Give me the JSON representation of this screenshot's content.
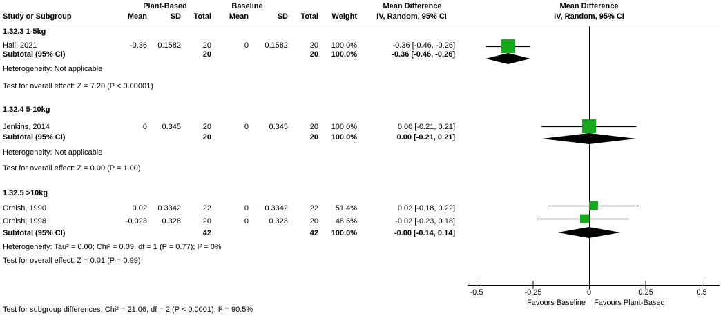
{
  "colors": {
    "marker_green": "#17A81E",
    "diamond_black": "#000000",
    "line_black": "#000000"
  },
  "header": {
    "group1": "Plant-Based",
    "group2": "Baseline",
    "col_study": "Study or Subgroup",
    "col_mean": "Mean",
    "col_sd": "SD",
    "col_total": "Total",
    "col_weight": "Weight",
    "md_title": "Mean Difference",
    "md_subtitle": "IV, Random, 95% CI"
  },
  "chart_data": {
    "type": "scatter",
    "plot_style": "forest-plot-meta-analysis",
    "effect_measure": "Mean Difference, IV, Random, 95% CI",
    "xlim": [
      -0.5,
      0.5
    ],
    "x_ticks": [
      "-0.5",
      "-0.25",
      "0",
      "0.25",
      "0.5"
    ],
    "x_tick_values": [
      -0.5,
      -0.25,
      0,
      0.25,
      0.5
    ],
    "favours_left": "Favours Baseline",
    "favours_right": "Favours Plant-Based",
    "subgroups": [
      {
        "title": "1.32.3 1-5kg",
        "studies": [
          {
            "name": "Hall, 2021",
            "mean1": "-0.36",
            "sd1": "0.1582",
            "total1": "20",
            "mean2": "0",
            "sd2": "0.1582",
            "total2": "20",
            "weight": "100.0%",
            "ci_text": "-0.36 [-0.46, -0.26]",
            "md": -0.36,
            "lo": -0.46,
            "hi": -0.26,
            "weight_value": 100
          }
        ],
        "subtotal": {
          "label": "Subtotal (95% CI)",
          "total1": "20",
          "total2": "20",
          "weight": "100.0%",
          "ci_text": "-0.36 [-0.46, -0.26]",
          "md": -0.36,
          "lo": -0.46,
          "hi": -0.26
        },
        "heterogeneity": "Heterogeneity: Not applicable",
        "overall_effect": "Test for overall effect: Z = 7.20 (P < 0.00001)"
      },
      {
        "title": "1.32.4 5-10kg",
        "studies": [
          {
            "name": "Jenkins, 2014",
            "mean1": "0",
            "sd1": "0.345",
            "total1": "20",
            "mean2": "0",
            "sd2": "0.345",
            "total2": "20",
            "weight": "100.0%",
            "ci_text": "0.00 [-0.21, 0.21]",
            "md": 0.0,
            "lo": -0.21,
            "hi": 0.21,
            "weight_value": 100
          }
        ],
        "subtotal": {
          "label": "Subtotal (95% CI)",
          "total1": "20",
          "total2": "20",
          "weight": "100.0%",
          "ci_text": "0.00 [-0.21, 0.21]",
          "md": 0.0,
          "lo": -0.21,
          "hi": 0.21
        },
        "heterogeneity": "Heterogeneity: Not applicable",
        "overall_effect": "Test for overall effect: Z = 0.00 (P = 1.00)"
      },
      {
        "title": "1.32.5 >10kg",
        "studies": [
          {
            "name": "Ornish, 1990",
            "mean1": "0.02",
            "sd1": "0.3342",
            "total1": "22",
            "mean2": "0",
            "sd2": "0.3342",
            "total2": "22",
            "weight": "51.4%",
            "ci_text": "0.02 [-0.18, 0.22]",
            "md": 0.02,
            "lo": -0.18,
            "hi": 0.22,
            "weight_value": 51.4
          },
          {
            "name": "Ornish, 1998",
            "mean1": "-0.023",
            "sd1": "0.328",
            "total1": "20",
            "mean2": "0",
            "sd2": "0.328",
            "total2": "20",
            "weight": "48.6%",
            "ci_text": "-0.02 [-0.23, 0.18]",
            "md": -0.02,
            "lo": -0.23,
            "hi": 0.18,
            "weight_value": 48.6
          }
        ],
        "subtotal": {
          "label": "Subtotal (95% CI)",
          "total1": "42",
          "total2": "42",
          "weight": "100.0%",
          "ci_text": "-0.00 [-0.14, 0.14]",
          "md": -0.001,
          "lo": -0.14,
          "hi": 0.14
        },
        "heterogeneity": "Heterogeneity: Tau² = 0.00; Chi² = 0.09, df = 1 (P = 0.77); I² = 0%",
        "overall_effect": "Test for overall effect: Z = 0.01 (P = 0.99)"
      }
    ],
    "footer": "Test for subgroup differences: Chi² = 21.06, df = 2 (P < 0.0001), I² = 90.5%"
  }
}
